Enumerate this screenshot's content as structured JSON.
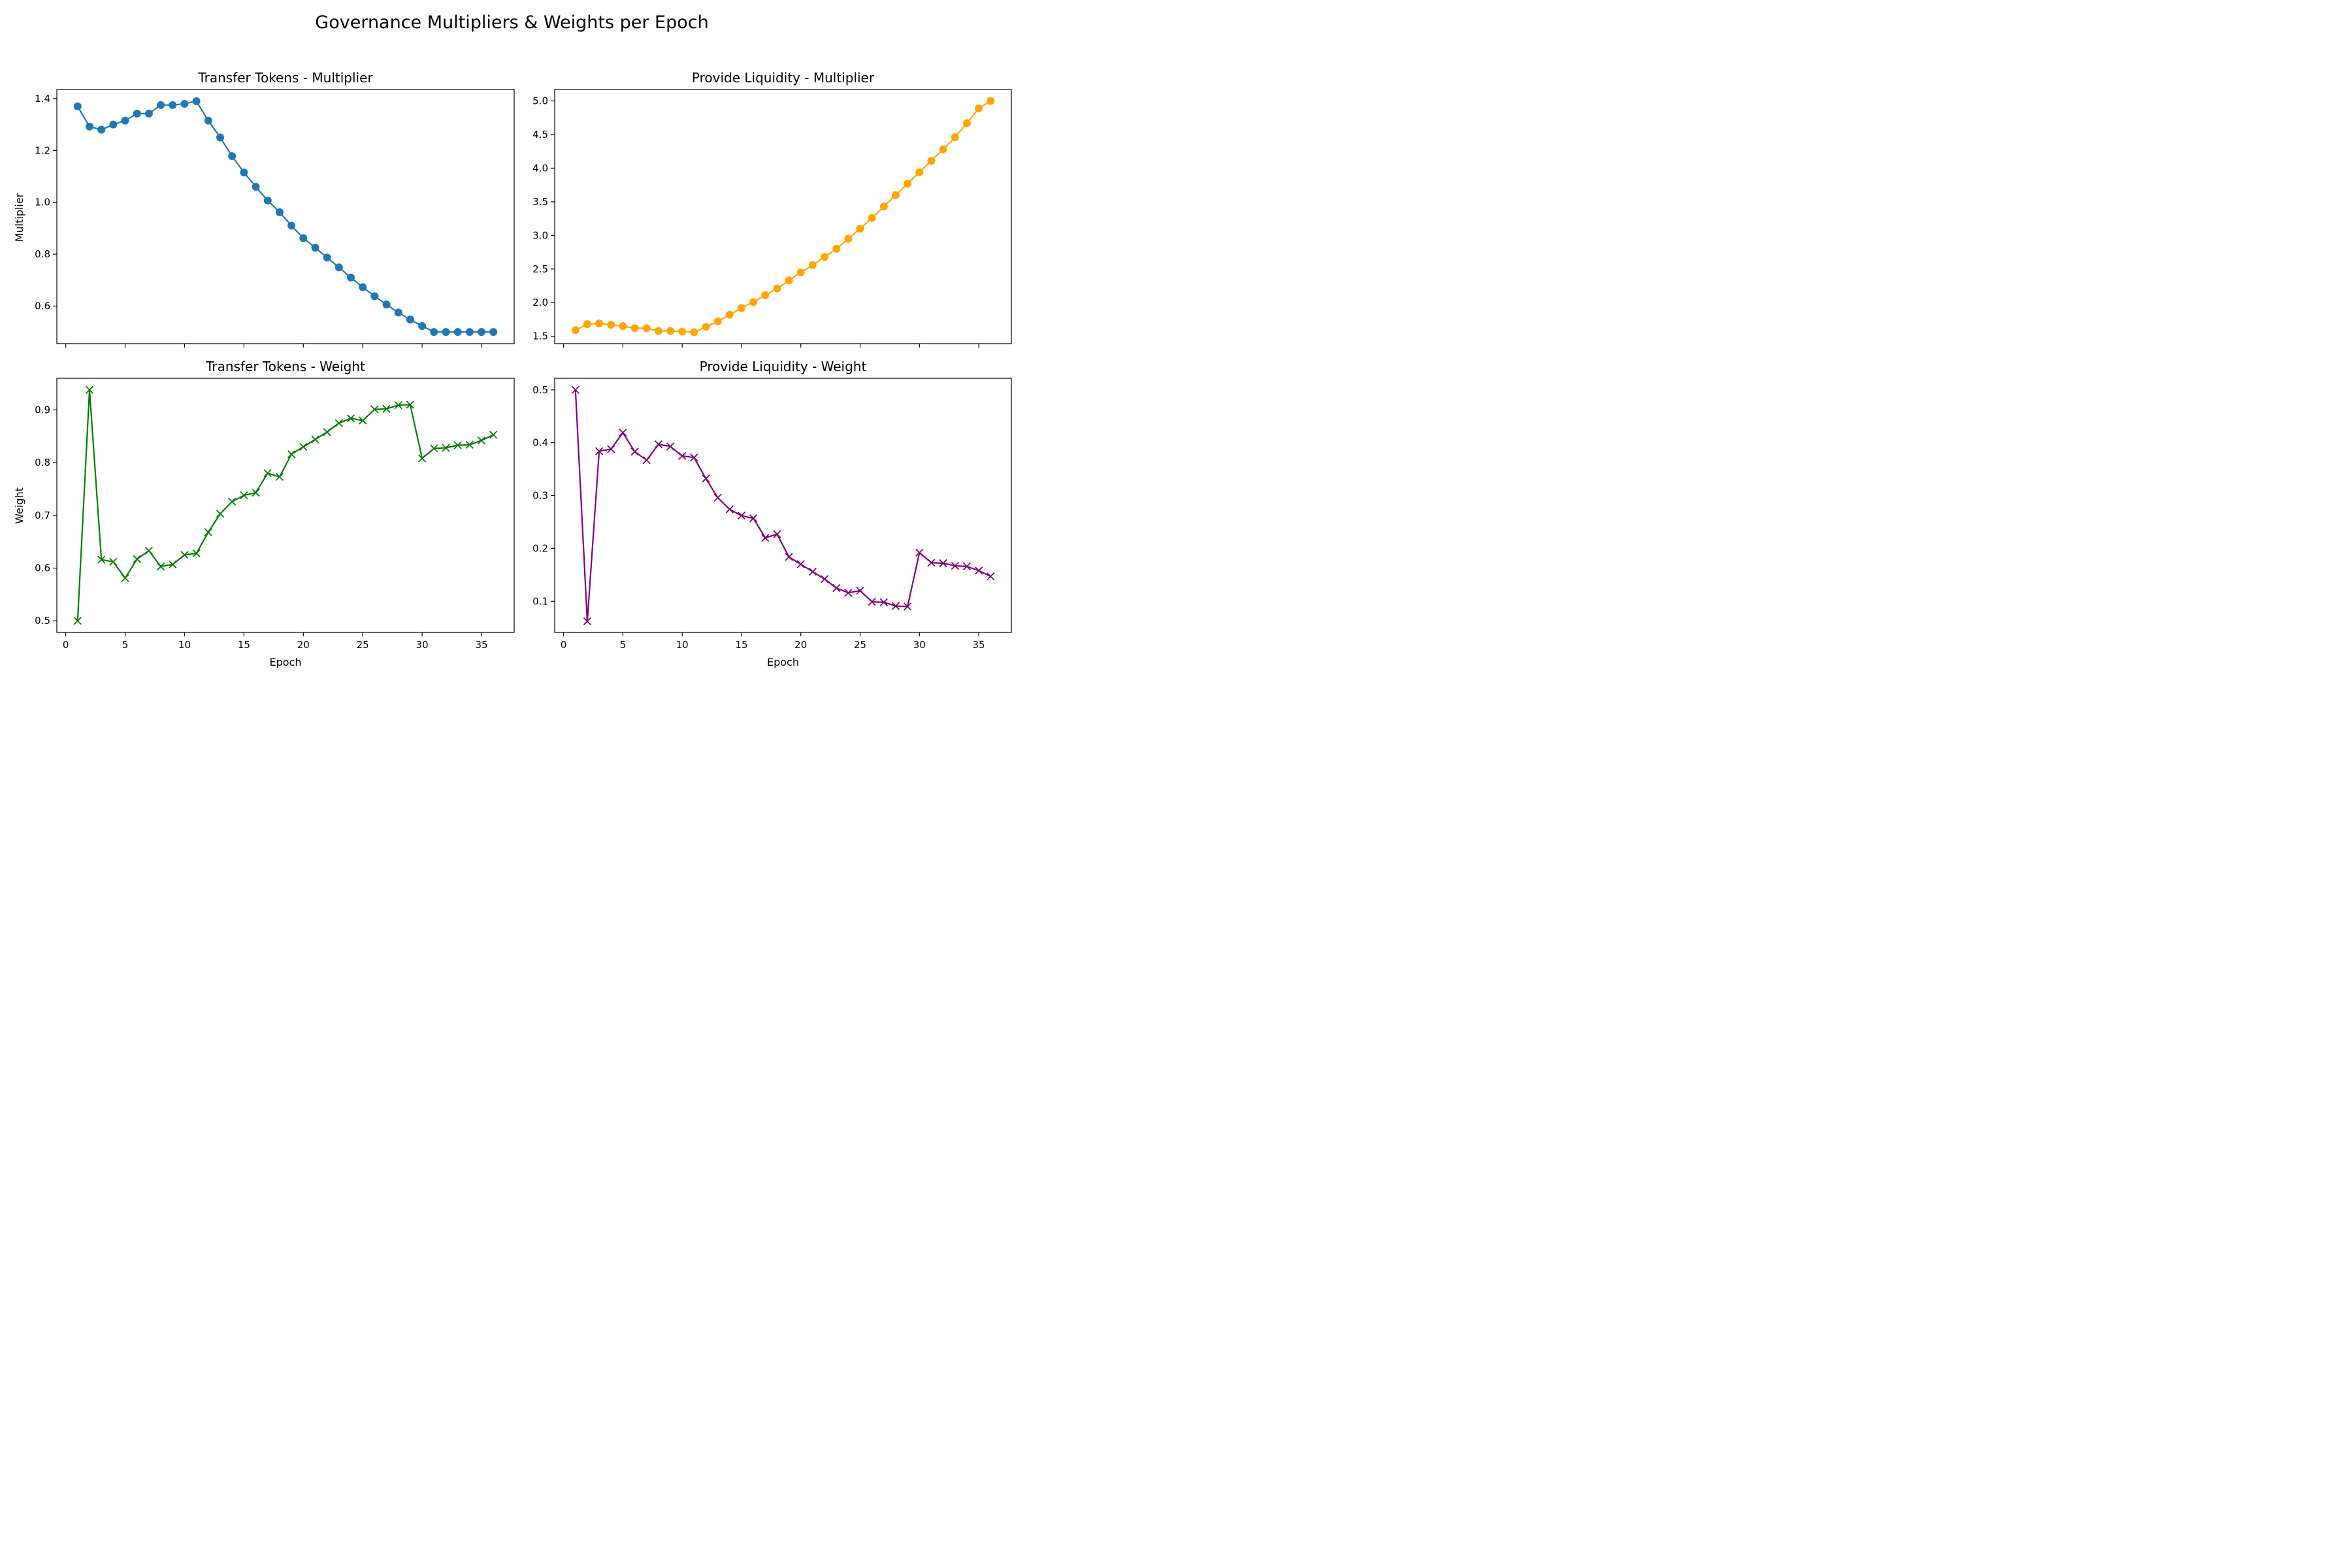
{
  "figure": {
    "title": "Governance Multipliers & Weights per Epoch"
  },
  "chart_data": [
    {
      "type": "line",
      "title": "Transfer Tokens - Multiplier",
      "xlabel": "",
      "ylabel": "Multiplier",
      "marker": "circle",
      "color": "#1f77b4",
      "xlim": [
        -0.75,
        37.75
      ],
      "ylim": [
        0.455,
        1.435
      ],
      "xticks": [
        0,
        5,
        10,
        15,
        20,
        25,
        30,
        35
      ],
      "xtick_labels_visible": false,
      "yticks": [
        0.6,
        0.8,
        1.0,
        1.2,
        1.4
      ],
      "ytick_labels": [
        "0.6",
        "0.8",
        "1.0",
        "1.2",
        "1.4"
      ],
      "x": [
        1,
        2,
        3,
        4,
        5,
        6,
        7,
        8,
        9,
        10,
        11,
        12,
        13,
        14,
        15,
        16,
        17,
        18,
        19,
        20,
        21,
        22,
        23,
        24,
        25,
        26,
        27,
        28,
        29,
        30,
        31,
        32,
        33,
        34,
        35,
        36
      ],
      "values": [
        1.37,
        1.292,
        1.28,
        1.3,
        1.315,
        1.342,
        1.342,
        1.375,
        1.375,
        1.38,
        1.39,
        1.315,
        1.25,
        1.178,
        1.115,
        1.06,
        1.007,
        0.962,
        0.91,
        0.862,
        0.825,
        0.787,
        0.749,
        0.71,
        0.673,
        0.638,
        0.606,
        0.575,
        0.548,
        0.523,
        0.5,
        0.5,
        0.5,
        0.5,
        0.5,
        0.5
      ]
    },
    {
      "type": "line",
      "title": "Provide Liquidity - Multiplier",
      "xlabel": "",
      "ylabel": "",
      "marker": "circle",
      "color": "#ffa500",
      "xlim": [
        -0.75,
        37.75
      ],
      "ylim": [
        1.39,
        5.17
      ],
      "xticks": [
        0,
        5,
        10,
        15,
        20,
        25,
        30,
        35
      ],
      "xtick_labels_visible": false,
      "yticks": [
        1.5,
        2.0,
        2.5,
        3.0,
        3.5,
        4.0,
        4.5,
        5.0
      ],
      "ytick_labels": [
        "1.5",
        "2.0",
        "2.5",
        "3.0",
        "3.5",
        "4.0",
        "4.5",
        "5.0"
      ],
      "x": [
        1,
        2,
        3,
        4,
        5,
        6,
        7,
        8,
        9,
        10,
        11,
        12,
        13,
        14,
        15,
        16,
        17,
        18,
        19,
        20,
        21,
        22,
        23,
        24,
        25,
        26,
        27,
        28,
        29,
        30,
        31,
        32,
        33,
        34,
        35,
        36
      ],
      "values": [
        1.59,
        1.68,
        1.69,
        1.67,
        1.65,
        1.62,
        1.62,
        1.58,
        1.58,
        1.57,
        1.56,
        1.64,
        1.72,
        1.82,
        1.92,
        2.01,
        2.11,
        2.21,
        2.33,
        2.45,
        2.56,
        2.68,
        2.8,
        2.95,
        3.1,
        3.26,
        3.43,
        3.6,
        3.77,
        3.94,
        4.11,
        4.28,
        4.46,
        4.67,
        4.89,
        5.0
      ]
    },
    {
      "type": "line",
      "title": "Transfer Tokens - Weight",
      "xlabel": "Epoch",
      "ylabel": "Weight",
      "marker": "x",
      "color": "#008000",
      "xlim": [
        -0.75,
        37.75
      ],
      "ylim": [
        0.478,
        0.96
      ],
      "xticks": [
        0,
        5,
        10,
        15,
        20,
        25,
        30,
        35
      ],
      "xtick_labels": [
        "0",
        "5",
        "10",
        "15",
        "20",
        "25",
        "30",
        "35"
      ],
      "yticks": [
        0.5,
        0.6,
        0.7,
        0.8,
        0.9
      ],
      "ytick_labels": [
        "0.5",
        "0.6",
        "0.7",
        "0.8",
        "0.9"
      ],
      "x": [
        1,
        2,
        3,
        4,
        5,
        6,
        7,
        8,
        9,
        10,
        11,
        12,
        13,
        14,
        15,
        16,
        17,
        18,
        19,
        20,
        21,
        22,
        23,
        24,
        25,
        26,
        27,
        28,
        29,
        30,
        31,
        32,
        33,
        34,
        35,
        36
      ],
      "values": [
        0.5,
        0.938,
        0.616,
        0.612,
        0.581,
        0.617,
        0.633,
        0.603,
        0.607,
        0.625,
        0.628,
        0.668,
        0.703,
        0.726,
        0.738,
        0.743,
        0.78,
        0.773,
        0.816,
        0.83,
        0.844,
        0.858,
        0.875,
        0.884,
        0.88,
        0.901,
        0.902,
        0.909,
        0.91,
        0.808,
        0.827,
        0.828,
        0.833,
        0.834,
        0.842,
        0.853
      ]
    },
    {
      "type": "line",
      "title": "Provide Liquidity - Weight",
      "xlabel": "Epoch",
      "ylabel": "",
      "marker": "x",
      "color": "#800080",
      "xlim": [
        -0.75,
        37.75
      ],
      "ylim": [
        0.041,
        0.522
      ],
      "xticks": [
        0,
        5,
        10,
        15,
        20,
        25,
        30,
        35
      ],
      "xtick_labels": [
        "0",
        "5",
        "10",
        "15",
        "20",
        "25",
        "30",
        "35"
      ],
      "yticks": [
        0.1,
        0.2,
        0.3,
        0.4,
        0.5
      ],
      "ytick_labels": [
        "0.1",
        "0.2",
        "0.3",
        "0.4",
        "0.5"
      ],
      "x": [
        1,
        2,
        3,
        4,
        5,
        6,
        7,
        8,
        9,
        10,
        11,
        12,
        13,
        14,
        15,
        16,
        17,
        18,
        19,
        20,
        21,
        22,
        23,
        24,
        25,
        26,
        27,
        28,
        29,
        30,
        31,
        32,
        33,
        34,
        35,
        36
      ],
      "values": [
        0.5,
        0.062,
        0.384,
        0.388,
        0.419,
        0.383,
        0.367,
        0.397,
        0.393,
        0.375,
        0.372,
        0.332,
        0.296,
        0.274,
        0.262,
        0.257,
        0.22,
        0.227,
        0.184,
        0.17,
        0.156,
        0.142,
        0.125,
        0.116,
        0.12,
        0.099,
        0.098,
        0.091,
        0.09,
        0.192,
        0.173,
        0.172,
        0.167,
        0.166,
        0.158,
        0.147
      ]
    }
  ]
}
